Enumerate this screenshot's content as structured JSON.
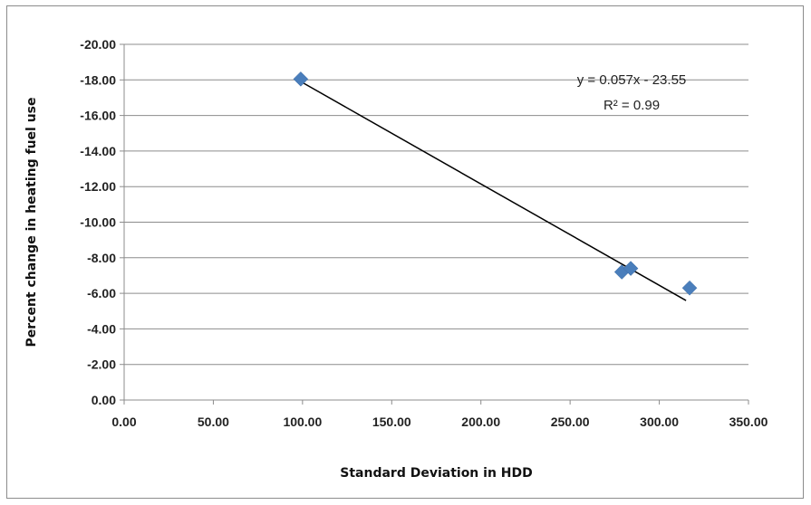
{
  "chart_data": {
    "type": "scatter",
    "title": "",
    "xlabel": "Standard Deviation in HDD",
    "ylabel": "Percent change in heating fuel use",
    "xlim": [
      0,
      350
    ],
    "ylim": [
      0,
      -20
    ],
    "y_axis_reversed": true,
    "x_ticks": [
      "0.00",
      "50.00",
      "100.00",
      "150.00",
      "200.00",
      "250.00",
      "300.00",
      "350.00"
    ],
    "y_ticks": [
      "0.00",
      "-2.00",
      "-4.00",
      "-6.00",
      "-8.00",
      "-10.00",
      "-12.00",
      "-14.00",
      "-16.00",
      "-18.00",
      "-20.00"
    ],
    "grid": "horizontal",
    "legend": "none",
    "points": [
      {
        "x": 99,
        "y": -18.05
      },
      {
        "x": 279,
        "y": -7.2
      },
      {
        "x": 284,
        "y": -7.4
      },
      {
        "x": 317,
        "y": -6.3
      }
    ],
    "trendline": {
      "type": "linear",
      "x_range": [
        99,
        315
      ],
      "equation": "y = 0.057x - 23.55",
      "r2_text": "R² = 0.99"
    },
    "colors": {
      "marker": "#4a7ebb",
      "trendline": "#000000",
      "grid": "#8c8c8c",
      "axis": "#8c8c8c"
    }
  }
}
